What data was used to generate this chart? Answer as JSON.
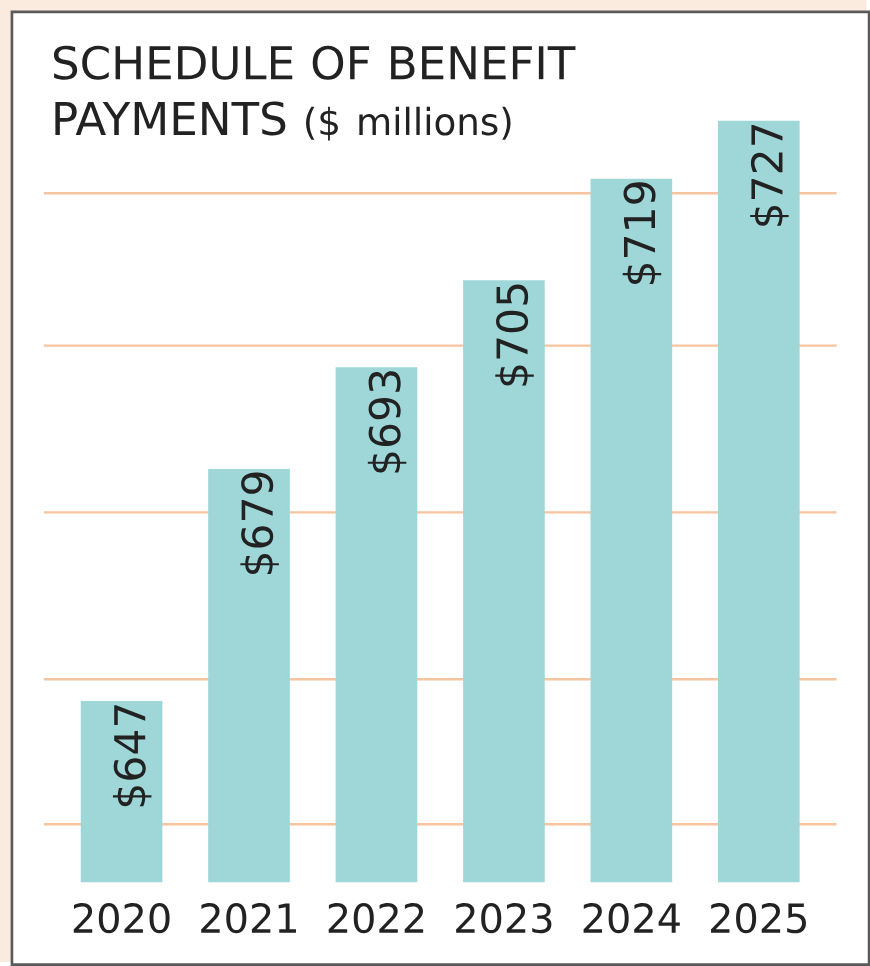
{
  "chart_data": {
    "type": "bar",
    "title": "SCHEDULE OF BENEFIT PAYMENTS",
    "subtitle": "($ millions)",
    "categories": [
      "2020",
      "2021",
      "2022",
      "2023",
      "2024",
      "2025"
    ],
    "values": [
      647,
      679,
      693,
      705,
      719,
      727
    ],
    "value_labels": [
      "$647",
      "$679",
      "$693",
      "$705",
      "$719",
      "$727"
    ],
    "color": "#9fd7d8",
    "ylim": [
      622,
      742
    ],
    "yticks": [
      {
        "value": 630,
        "label": null
      },
      {
        "value": 650,
        "label": null
      },
      {
        "value": 673,
        "label": null
      },
      {
        "value": 696,
        "label": null
      },
      {
        "value": 717,
        "label": null
      }
    ],
    "grid": "y",
    "tick_labels": "x"
  }
}
